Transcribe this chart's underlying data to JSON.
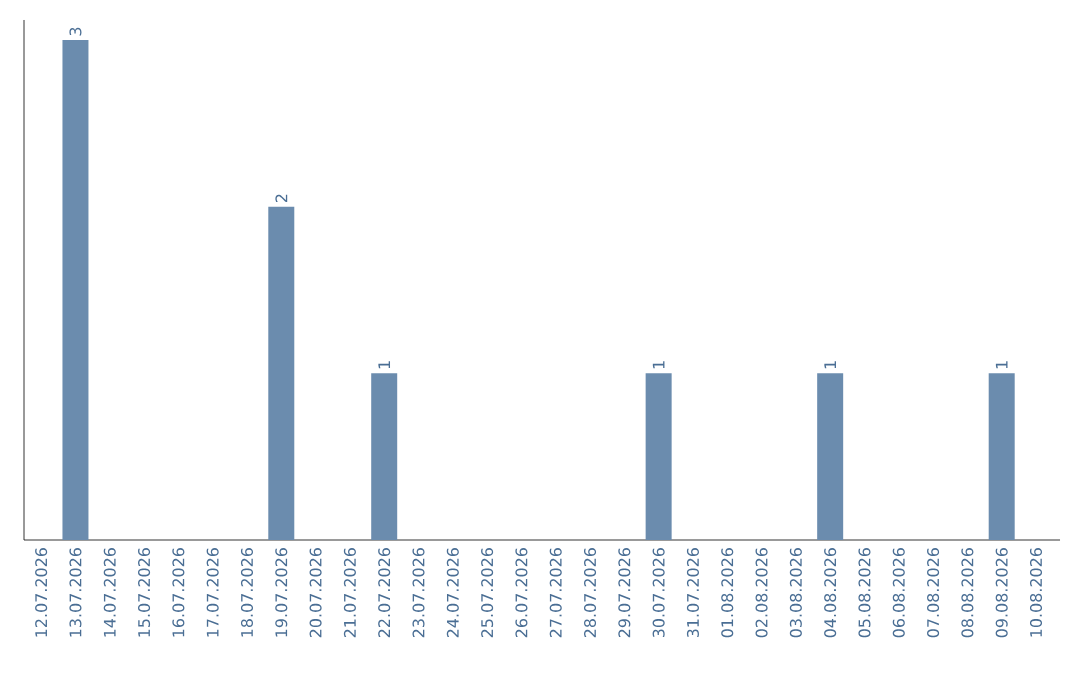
{
  "chart_data": {
    "type": "bar",
    "categories": [
      "12.07.2026",
      "13.07.2026",
      "14.07.2026",
      "15.07.2026",
      "16.07.2026",
      "17.07.2026",
      "18.07.2026",
      "19.07.2026",
      "20.07.2026",
      "21.07.2026",
      "22.07.2026",
      "23.07.2026",
      "24.07.2026",
      "25.07.2026",
      "26.07.2026",
      "27.07.2026",
      "28.07.2026",
      "29.07.2026",
      "30.07.2026",
      "31.07.2026",
      "01.08.2026",
      "02.08.2026",
      "03.08.2026",
      "04.08.2026",
      "05.08.2026",
      "06.08.2026",
      "07.08.2026",
      "08.08.2026",
      "09.08.2026",
      "10.08.2026"
    ],
    "values": [
      0,
      3,
      0,
      0,
      0,
      0,
      0,
      2,
      0,
      0,
      1,
      0,
      0,
      0,
      0,
      0,
      0,
      0,
      1,
      0,
      0,
      0,
      0,
      1,
      0,
      0,
      0,
      0,
      1,
      0
    ],
    "value_labels": [
      null,
      "3",
      null,
      null,
      null,
      null,
      null,
      "2",
      null,
      null,
      "1",
      null,
      null,
      null,
      null,
      null,
      null,
      null,
      "1",
      null,
      null,
      null,
      null,
      "1",
      null,
      null,
      null,
      null,
      "1",
      null
    ],
    "color": "#6b8cae"
  }
}
